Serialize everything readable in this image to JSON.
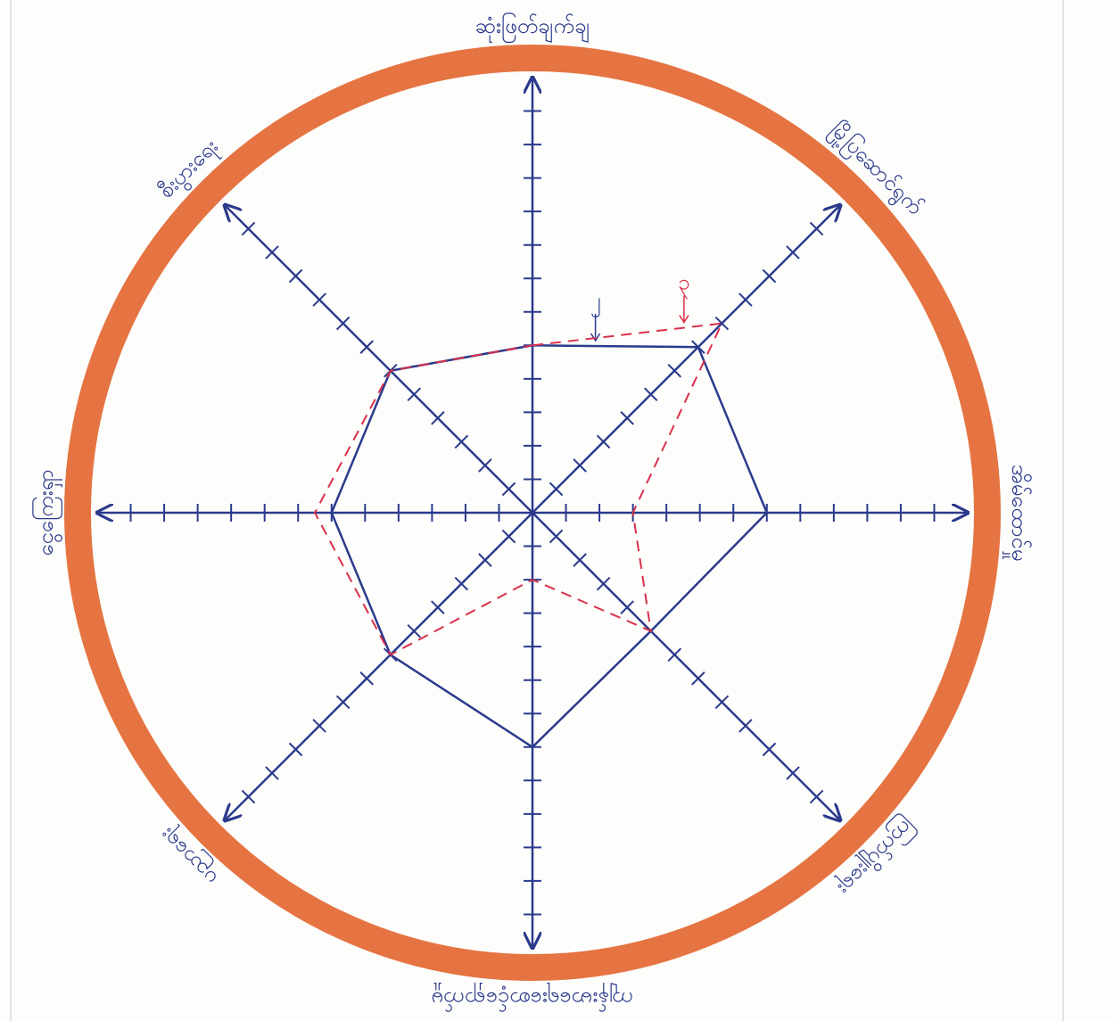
{
  "chart_data": {
    "type": "radar",
    "categories": [
      "ဆုံးဖြတ်ချက်ချ",
      "မြို့ပြဆောင်ရွက်",
      "အိမ်ထောင်မှု",
      "ကြက်ပျိုးရေး",
      "ကျန်းမာရေးစောင့်ရှောက်မှု",
      "ပညာရေး",
      "ငွေကြေးရှာ",
      "စီးပွားရေး"
    ],
    "rlim": [
      0,
      13
    ],
    "rticks": [
      1,
      2,
      3,
      4,
      5,
      6,
      7,
      8,
      9,
      10,
      11,
      12
    ],
    "ring_color": "#e2652e",
    "axis_color": "#2b3a8c",
    "series": [
      {
        "name": "၂",
        "color": "#2b3a8c",
        "dash": false,
        "values": [
          5,
          7,
          7,
          5,
          7,
          6,
          6,
          6
        ]
      },
      {
        "name": "၃",
        "color": "#d9304a",
        "dash": true,
        "values": [
          5,
          8,
          3,
          5,
          2,
          6,
          6.5,
          6
        ]
      }
    ]
  }
}
